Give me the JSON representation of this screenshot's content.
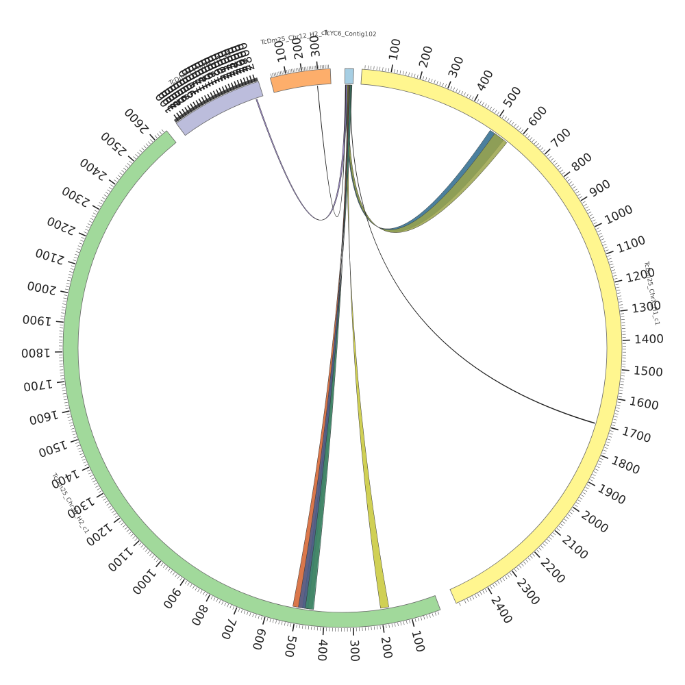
{
  "diagram_type": "circos",
  "sequences": [
    {
      "id": "c102",
      "label": "TcYC6_Contig102",
      "length": 80,
      "color": "#a6cee3",
      "ticks": []
    },
    {
      "id": "x",
      "label": "TcDm25_ChrX_H1_c1",
      "length": 2520,
      "color": "#fff68f",
      "ticks": [
        "100",
        "200",
        "300",
        "400",
        "500",
        "600",
        "700",
        "800",
        "900",
        "1000",
        "1100",
        "1200",
        "1300",
        "1400",
        "1500",
        "1600",
        "1700",
        "1800",
        "1900",
        "2000",
        "2100",
        "2200",
        "2300",
        "2400"
      ]
    },
    {
      "id": "c30",
      "label": "TcDm25_Chr30_H2_c1",
      "length": 2650,
      "color": "#a1d99b",
      "ticks": [
        "100",
        "200",
        "300",
        "400",
        "500",
        "600",
        "700",
        "800",
        "900",
        "1000",
        "1100",
        "1200",
        "1300",
        "1400",
        "1500",
        "1600",
        "1700",
        "1800",
        "1900",
        "2000",
        "2100",
        "2200",
        "2300",
        "2400",
        "2500",
        "2600"
      ]
    },
    {
      "id": "c04",
      "label": "TcDm25_Chr04_H1_c1",
      "length": 2900,
      "color": "#bcbddc",
      "ticks": [
        "100",
        "200",
        "300",
        "400",
        "500",
        "600",
        "700",
        "800",
        "900",
        "1000",
        "1100",
        "1200",
        "1300",
        "1400",
        "1500",
        "1600",
        "1700",
        "1800",
        "1900",
        "2000",
        "2100",
        "2200",
        "2300",
        "2400",
        "2500",
        "2600",
        "2700",
        "2800"
      ]
    },
    {
      "id": "c12",
      "label": "TcDm25_Chr12_H2_c1",
      "length": 380,
      "color": "#fdae6b",
      "ticks": [
        "100",
        "200",
        "300"
      ]
    }
  ],
  "links": [
    {
      "from": "c102",
      "s": 10,
      "e": 30,
      "to": "x",
      "ts": 500,
      "te": 560,
      "color": "#2b6a8d"
    },
    {
      "from": "c102",
      "s": 18,
      "e": 38,
      "to": "x",
      "ts": 520,
      "te": 575,
      "color": "#9aa34a"
    },
    {
      "from": "c102",
      "s": 5,
      "e": 25,
      "to": "c04",
      "ts": 2640,
      "te": 2680,
      "color": "#8873b8"
    },
    {
      "from": "c102",
      "s": 25,
      "e": 45,
      "to": "c30",
      "ts": 170,
      "te": 200,
      "color": "#c8c836"
    },
    {
      "from": "c102",
      "s": 32,
      "e": 56,
      "to": "c30",
      "ts": 445,
      "te": 480,
      "color": "#5b6b45"
    },
    {
      "from": "c102",
      "s": 40,
      "e": 60,
      "to": "c30",
      "ts": 480,
      "te": 515,
      "color": "#d35f2b"
    },
    {
      "from": "c102",
      "s": 45,
      "e": 65,
      "to": "c30",
      "ts": 460,
      "te": 495,
      "color": "#4a5d8e"
    },
    {
      "from": "c102",
      "s": 50,
      "e": 70,
      "to": "c30",
      "ts": 440,
      "te": 470,
      "color": "#3d8a6b"
    },
    {
      "from": "c102",
      "s": 60,
      "e": 61,
      "to": "x",
      "ts": 1700,
      "te": 1702,
      "color": "#222222"
    },
    {
      "from": "c12",
      "s": 290,
      "e": 291,
      "to": "c102",
      "ts": 8,
      "te": 9,
      "color": "#222222"
    }
  ]
}
